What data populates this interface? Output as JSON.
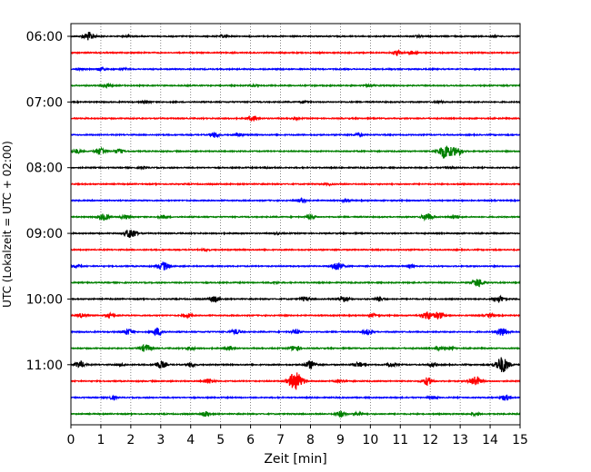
{
  "chart_data": {
    "type": "line",
    "title": "",
    "xlabel": "Zeit  [min]",
    "ylabel": "UTC (Lokalzeit = UTC + 02:00)",
    "xlim": [
      0,
      15
    ],
    "x_ticks": [
      0,
      1,
      2,
      3,
      4,
      5,
      6,
      7,
      8,
      9,
      10,
      11,
      12,
      13,
      14,
      15
    ],
    "x_tick_labels": [
      "0",
      "1",
      "2",
      "3",
      "4",
      "5",
      "6",
      "7",
      "8",
      "9",
      "10",
      "11",
      "12",
      "13",
      "14",
      "15"
    ],
    "y_tick_labels": [
      "06:00",
      "07:00",
      "08:00",
      "09:00",
      "10:00",
      "11:00"
    ],
    "y_tick_hours": [
      6,
      7,
      8,
      9,
      10,
      11
    ],
    "vertical_grid": true,
    "grid_style": "dotted",
    "line_start_time": "06:00",
    "line_interval_minutes": 15,
    "line_colors": [
      "#000000",
      "#ff0000",
      "#0000ff",
      "#008000"
    ],
    "traces": [
      {
        "start": "06:00",
        "events": [
          [
            0.6,
            1.0
          ],
          [
            1.9,
            0.3
          ],
          [
            5.1,
            0.3
          ],
          [
            11.6,
            0.2
          ],
          [
            14.1,
            0.2
          ]
        ]
      },
      {
        "start": "06:15",
        "events": [
          [
            10.9,
            0.6
          ],
          [
            11.4,
            0.4
          ]
        ]
      },
      {
        "start": "06:30",
        "events": [
          [
            0.3,
            0.2
          ],
          [
            1.0,
            0.4
          ],
          [
            1.8,
            0.2
          ]
        ]
      },
      {
        "start": "06:45",
        "events": [
          [
            1.2,
            0.4
          ],
          [
            6.1,
            0.2
          ],
          [
            10.0,
            0.2
          ]
        ]
      },
      {
        "start": "07:00",
        "events": [
          [
            2.5,
            0.3
          ],
          [
            7.8,
            0.3
          ],
          [
            12.3,
            0.2
          ]
        ]
      },
      {
        "start": "07:15",
        "events": [
          [
            6.1,
            0.6
          ],
          [
            7.5,
            0.2
          ]
        ]
      },
      {
        "start": "07:30",
        "events": [
          [
            4.8,
            0.6
          ],
          [
            5.6,
            0.4
          ],
          [
            9.6,
            0.3
          ]
        ]
      },
      {
        "start": "07:45",
        "events": [
          [
            0.2,
            0.5
          ],
          [
            1.0,
            0.9
          ],
          [
            1.6,
            0.5
          ],
          [
            12.5,
            1.8
          ],
          [
            12.9,
            1.0
          ]
        ]
      },
      {
        "start": "08:00",
        "events": [
          [
            2.4,
            0.2
          ],
          [
            6.6,
            0.2
          ],
          [
            12.6,
            0.2
          ]
        ]
      },
      {
        "start": "08:15",
        "events": [
          [
            8.6,
            0.2
          ]
        ]
      },
      {
        "start": "08:30",
        "events": [
          [
            7.7,
            0.5
          ],
          [
            9.2,
            0.3
          ]
        ]
      },
      {
        "start": "08:45",
        "events": [
          [
            1.1,
            0.8
          ],
          [
            1.8,
            0.5
          ],
          [
            3.1,
            0.4
          ],
          [
            8.0,
            0.5
          ],
          [
            11.9,
            0.9
          ],
          [
            12.8,
            0.5
          ]
        ]
      },
      {
        "start": "09:00",
        "events": [
          [
            2.0,
            1.2
          ],
          [
            6.9,
            0.2
          ]
        ]
      },
      {
        "start": "09:15",
        "events": [
          [
            4.5,
            0.2
          ]
        ]
      },
      {
        "start": "09:30",
        "events": [
          [
            0.2,
            0.3
          ],
          [
            3.1,
            1.0
          ],
          [
            8.9,
            1.1
          ],
          [
            11.3,
            0.3
          ]
        ]
      },
      {
        "start": "09:45",
        "events": [
          [
            6.8,
            0.2
          ],
          [
            13.6,
            1.0
          ]
        ]
      },
      {
        "start": "10:00",
        "events": [
          [
            4.8,
            0.7
          ],
          [
            7.8,
            0.5
          ],
          [
            9.1,
            0.7
          ],
          [
            10.3,
            0.5
          ],
          [
            14.3,
            0.8
          ]
        ]
      },
      {
        "start": "10:15",
        "events": [
          [
            0.4,
            0.6
          ],
          [
            1.3,
            0.5
          ],
          [
            3.9,
            0.4
          ],
          [
            10.1,
            0.4
          ],
          [
            11.9,
            1.0
          ],
          [
            12.3,
            0.8
          ],
          [
            14.0,
            0.4
          ]
        ]
      },
      {
        "start": "10:30",
        "events": [
          [
            1.9,
            0.7
          ],
          [
            2.9,
            0.9
          ],
          [
            5.5,
            0.6
          ],
          [
            7.5,
            0.5
          ],
          [
            9.9,
            0.6
          ],
          [
            14.4,
            1.0
          ]
        ]
      },
      {
        "start": "10:45",
        "events": [
          [
            2.5,
            0.9
          ],
          [
            4.0,
            0.4
          ],
          [
            5.3,
            0.5
          ],
          [
            7.5,
            0.7
          ],
          [
            12.3,
            0.4
          ],
          [
            12.7,
            0.3
          ]
        ]
      },
      {
        "start": "11:00",
        "events": [
          [
            0.3,
            0.8
          ],
          [
            1.7,
            0.3
          ],
          [
            3.0,
            0.9
          ],
          [
            4.0,
            0.5
          ],
          [
            8.0,
            1.0
          ],
          [
            9.6,
            0.6
          ],
          [
            10.7,
            0.5
          ],
          [
            12.1,
            0.4
          ],
          [
            14.4,
            1.9
          ]
        ]
      },
      {
        "start": "11:15",
        "events": [
          [
            4.6,
            0.6
          ],
          [
            7.5,
            2.2
          ],
          [
            9.0,
            0.4
          ],
          [
            11.9,
            0.9
          ],
          [
            13.5,
            1.2
          ]
        ]
      },
      {
        "start": "11:30",
        "events": [
          [
            1.4,
            0.4
          ],
          [
            12.1,
            0.3
          ],
          [
            14.5,
            0.7
          ]
        ]
      },
      {
        "start": "11:45",
        "events": [
          [
            4.5,
            0.6
          ],
          [
            9.0,
            0.7
          ],
          [
            9.6,
            0.4
          ],
          [
            13.5,
            0.3
          ]
        ]
      }
    ]
  }
}
